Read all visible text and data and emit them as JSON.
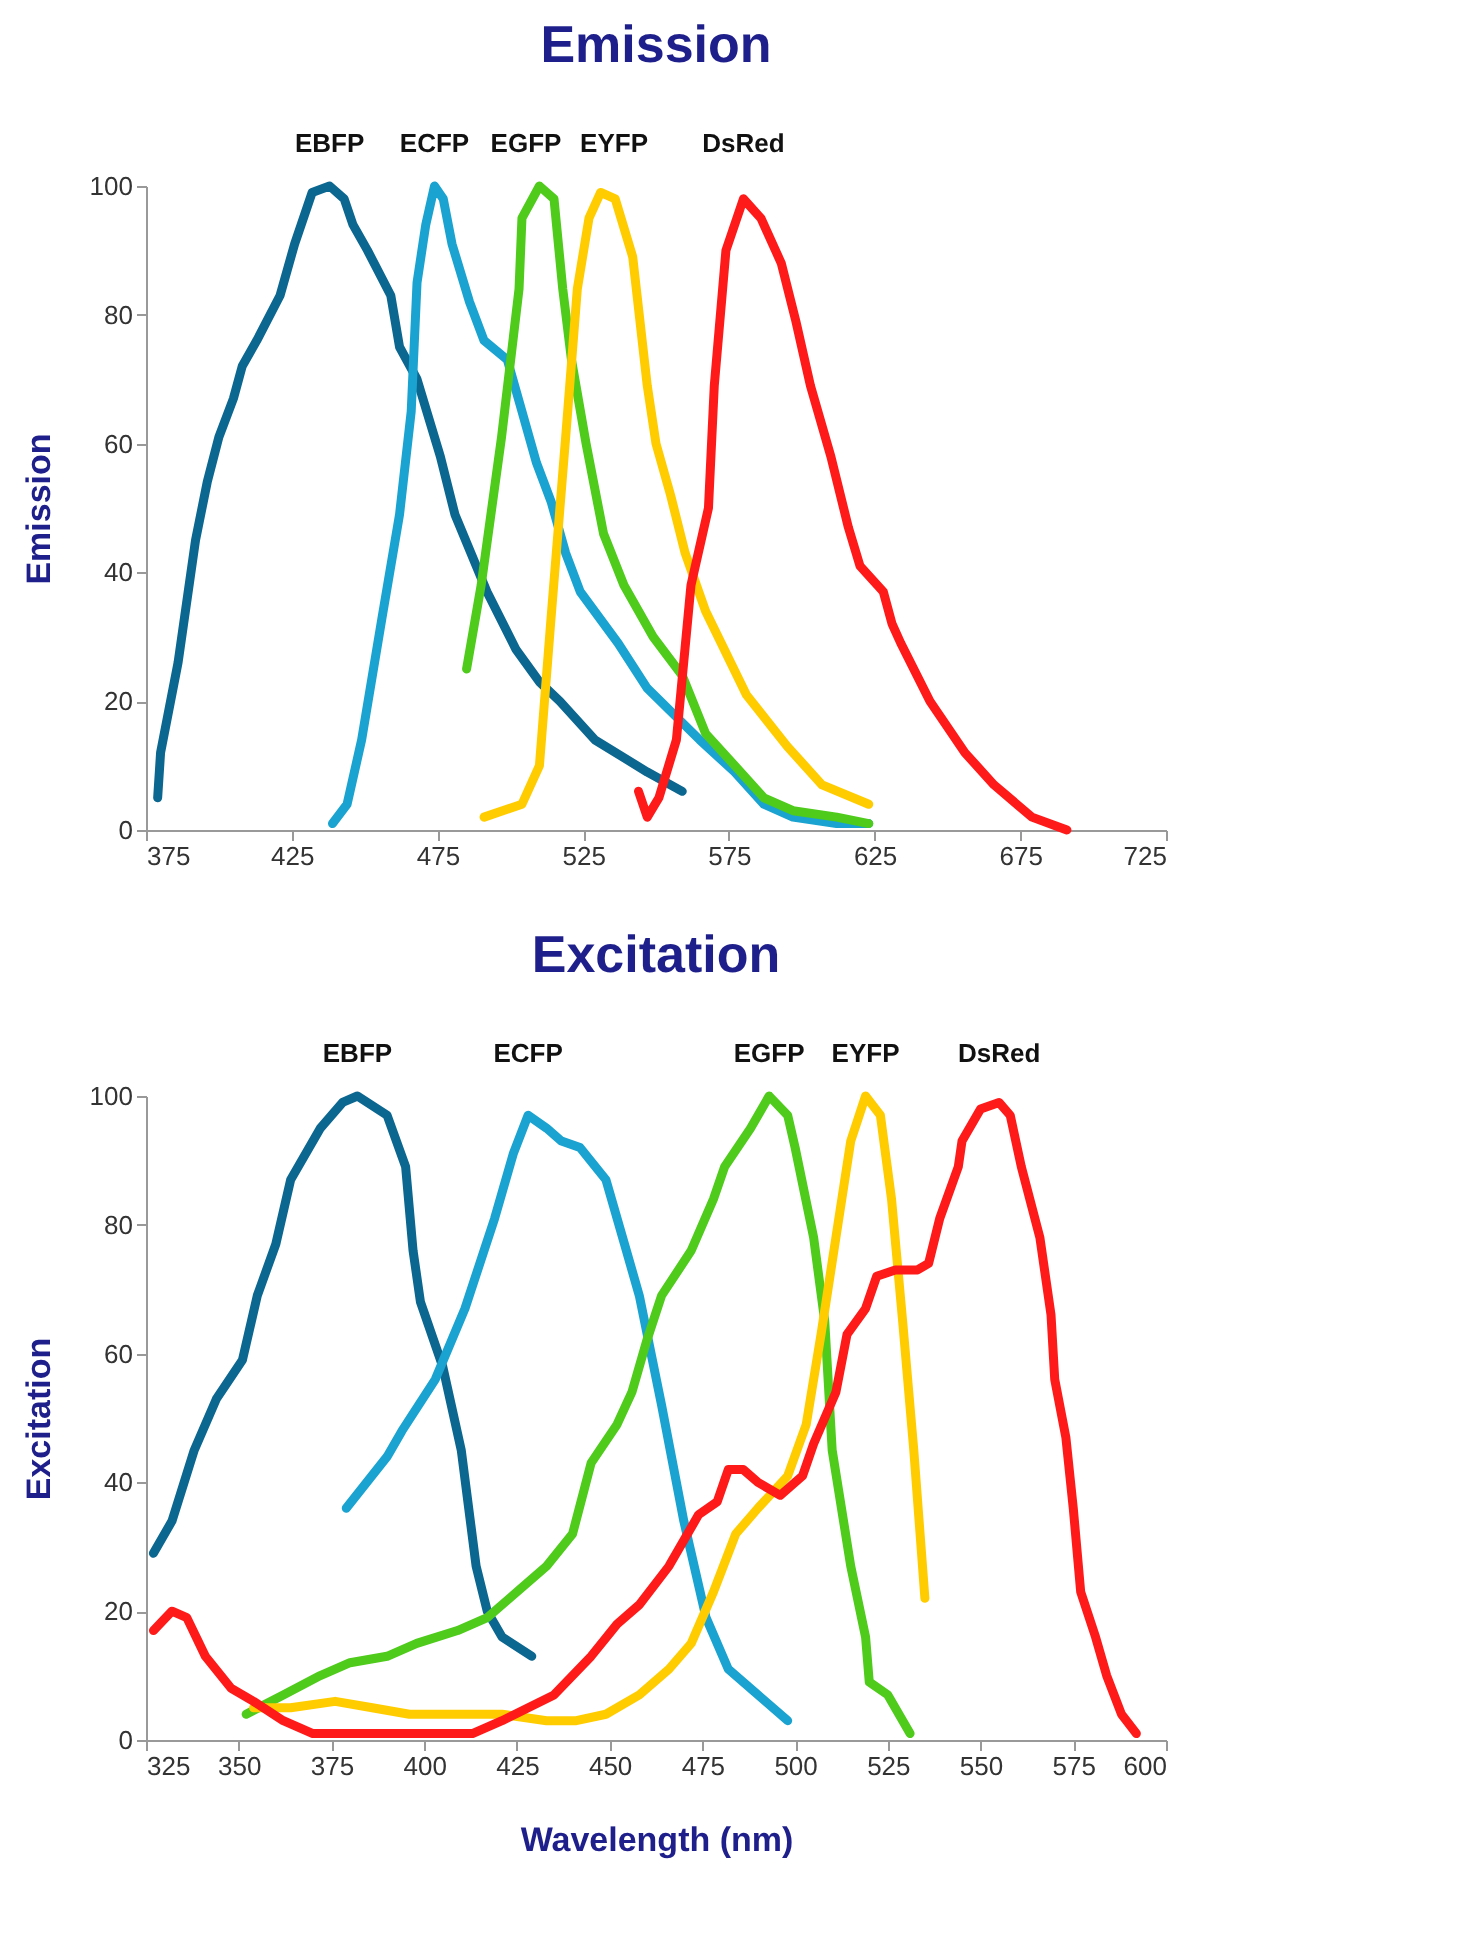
{
  "chart_data": [
    {
      "type": "line",
      "title": "Emission",
      "ylabel": "Emission",
      "xlim": [
        375,
        725
      ],
      "xticks": [
        375,
        425,
        475,
        525,
        575,
        625,
        675,
        725
      ],
      "ylim": [
        0,
        100
      ],
      "yticks": [
        0,
        20,
        40,
        60,
        80,
        100
      ],
      "grid": false,
      "legend": false,
      "line_style": "solid",
      "marker": "none",
      "series": [
        {
          "name": "EBFP",
          "color": "#0b6690",
          "x": [
            379,
            380,
            386,
            392,
            396,
            400,
            405,
            408,
            413,
            421,
            426,
            432,
            438,
            443,
            446,
            451,
            459,
            462,
            468,
            476,
            481,
            492,
            502,
            510,
            517,
            529,
            547,
            559
          ],
          "values": [
            5,
            12,
            26,
            45,
            54,
            61,
            67,
            72,
            76,
            83,
            91,
            99,
            100,
            98,
            94,
            90,
            83,
            75,
            70,
            58,
            49,
            37,
            28,
            23,
            20,
            14,
            9,
            6
          ]
        },
        {
          "name": "ECFP",
          "color": "#1aa3d0",
          "x": [
            439,
            444,
            449,
            456,
            462,
            466,
            468,
            471,
            474,
            477,
            480,
            486,
            491,
            499,
            504,
            509,
            514,
            519,
            524,
            537,
            547,
            565,
            577,
            587,
            597,
            612,
            623
          ],
          "values": [
            1,
            4,
            14,
            33,
            49,
            65,
            85,
            94,
            100,
            98,
            91,
            82,
            76,
            73,
            65,
            57,
            51,
            43,
            37,
            29,
            22,
            14,
            9,
            4,
            2,
            1,
            1
          ]
        },
        {
          "name": "EGFP",
          "color": "#4ecb1b",
          "x": [
            485,
            490,
            497,
            503,
            504,
            510,
            515,
            518,
            521,
            526,
            532,
            539,
            549,
            559,
            567,
            577,
            587,
            597,
            612,
            623
          ],
          "values": [
            25,
            38,
            61,
            84,
            95,
            100,
            98,
            84,
            73,
            60,
            46,
            38,
            30,
            24,
            15,
            10,
            5,
            3,
            2,
            1
          ]
        },
        {
          "name": "EYFP",
          "color": "#ffcc00",
          "x": [
            491,
            504,
            510,
            514,
            519,
            523,
            527,
            531,
            536,
            542,
            547,
            550,
            555,
            560,
            567,
            581,
            595,
            607,
            623
          ],
          "values": [
            2,
            4,
            10,
            33,
            61,
            84,
            95,
            99,
            98,
            89,
            69,
            60,
            52,
            43,
            34,
            21,
            13,
            7,
            4
          ]
        },
        {
          "name": "DsRed",
          "color": "#ff1a1a",
          "x": [
            544,
            547,
            551,
            557,
            562,
            568,
            570,
            574,
            580,
            586,
            593,
            598,
            603,
            610,
            616,
            620,
            628,
            631,
            634,
            644,
            656,
            666,
            679,
            691
          ],
          "values": [
            6,
            2,
            5,
            14,
            38,
            50,
            69,
            90,
            98,
            95,
            88,
            79,
            69,
            58,
            47,
            41,
            37,
            32,
            29,
            20,
            12,
            7,
            2,
            0
          ]
        }
      ]
    },
    {
      "type": "line",
      "title": "Excitation",
      "ylabel": "Excitation",
      "xlabel": "Wavelength (nm)",
      "xlim": [
        325,
        600
      ],
      "xticks": [
        325,
        350,
        375,
        400,
        425,
        450,
        475,
        500,
        525,
        550,
        575,
        600
      ],
      "ylim": [
        0,
        100
      ],
      "yticks": [
        0,
        20,
        40,
        60,
        80,
        100
      ],
      "grid": false,
      "legend": false,
      "line_style": "solid",
      "marker": "none",
      "series": [
        {
          "name": "EBFP",
          "color": "#0b6690",
          "x": [
            327,
            332,
            338,
            344,
            351,
            355,
            360,
            364,
            372,
            378,
            382,
            390,
            395,
            397,
            399,
            405,
            410,
            414,
            417,
            421,
            429
          ],
          "values": [
            29,
            34,
            45,
            53,
            59,
            69,
            77,
            87,
            95,
            99,
            100,
            97,
            89,
            76,
            68,
            58,
            45,
            27,
            20,
            16,
            13
          ]
        },
        {
          "name": "ECFP",
          "color": "#1aa3d0",
          "x": [
            379,
            390,
            394,
            403,
            411,
            419,
            424,
            428,
            433,
            437,
            442,
            449,
            454,
            458,
            464,
            470,
            476,
            482,
            490,
            498
          ],
          "values": [
            36,
            44,
            48,
            56,
            67,
            81,
            91,
            97,
            95,
            93,
            92,
            87,
            77,
            69,
            52,
            34,
            19,
            11,
            7,
            3
          ]
        },
        {
          "name": "EGFP",
          "color": "#4ecb1b",
          "x": [
            352,
            362,
            372,
            380,
            390,
            398,
            409,
            417,
            425,
            433,
            440,
            445,
            452,
            456,
            460,
            464,
            472,
            478,
            481,
            488,
            493,
            498,
            500,
            505,
            508,
            510,
            515,
            519,
            520,
            525,
            531
          ],
          "values": [
            4,
            7,
            10,
            12,
            13,
            15,
            17,
            19,
            23,
            27,
            32,
            43,
            49,
            54,
            62,
            69,
            76,
            84,
            89,
            95,
            100,
            97,
            92,
            78,
            65,
            45,
            27,
            16,
            9,
            7,
            1
          ]
        },
        {
          "name": "EYFP",
          "color": "#ffcc00",
          "x": [
            354,
            364,
            376,
            386,
            396,
            409,
            421,
            433,
            441,
            449,
            458,
            466,
            472,
            478,
            484,
            490,
            498,
            503,
            507,
            511,
            515,
            519,
            523,
            526,
            529,
            532,
            535
          ],
          "values": [
            5,
            5,
            6,
            5,
            4,
            4,
            4,
            3,
            3,
            4,
            7,
            11,
            15,
            23,
            32,
            36,
            41,
            49,
            63,
            78,
            93,
            100,
            97,
            84,
            65,
            45,
            22
          ]
        },
        {
          "name": "DsRed",
          "color": "#ff1a1a",
          "x": [
            327,
            332,
            336,
            341,
            348,
            354,
            362,
            370,
            386,
            413,
            421,
            435,
            445,
            452,
            458,
            466,
            474,
            479,
            482,
            486,
            490,
            496,
            502,
            505,
            511,
            514,
            519,
            522,
            527,
            533,
            536,
            539,
            544,
            545,
            550,
            555,
            558,
            561,
            566,
            569,
            570,
            573,
            575,
            577,
            581,
            584,
            588,
            592
          ],
          "values": [
            17,
            20,
            19,
            13,
            8,
            6,
            3,
            1,
            1,
            1,
            3,
            7,
            13,
            18,
            21,
            27,
            35,
            37,
            42,
            42,
            40,
            38,
            41,
            46,
            54,
            63,
            67,
            72,
            73,
            73,
            74,
            81,
            89,
            93,
            98,
            99,
            97,
            89,
            78,
            66,
            56,
            47,
            36,
            23,
            16,
            10,
            4,
            1
          ]
        }
      ]
    }
  ]
}
